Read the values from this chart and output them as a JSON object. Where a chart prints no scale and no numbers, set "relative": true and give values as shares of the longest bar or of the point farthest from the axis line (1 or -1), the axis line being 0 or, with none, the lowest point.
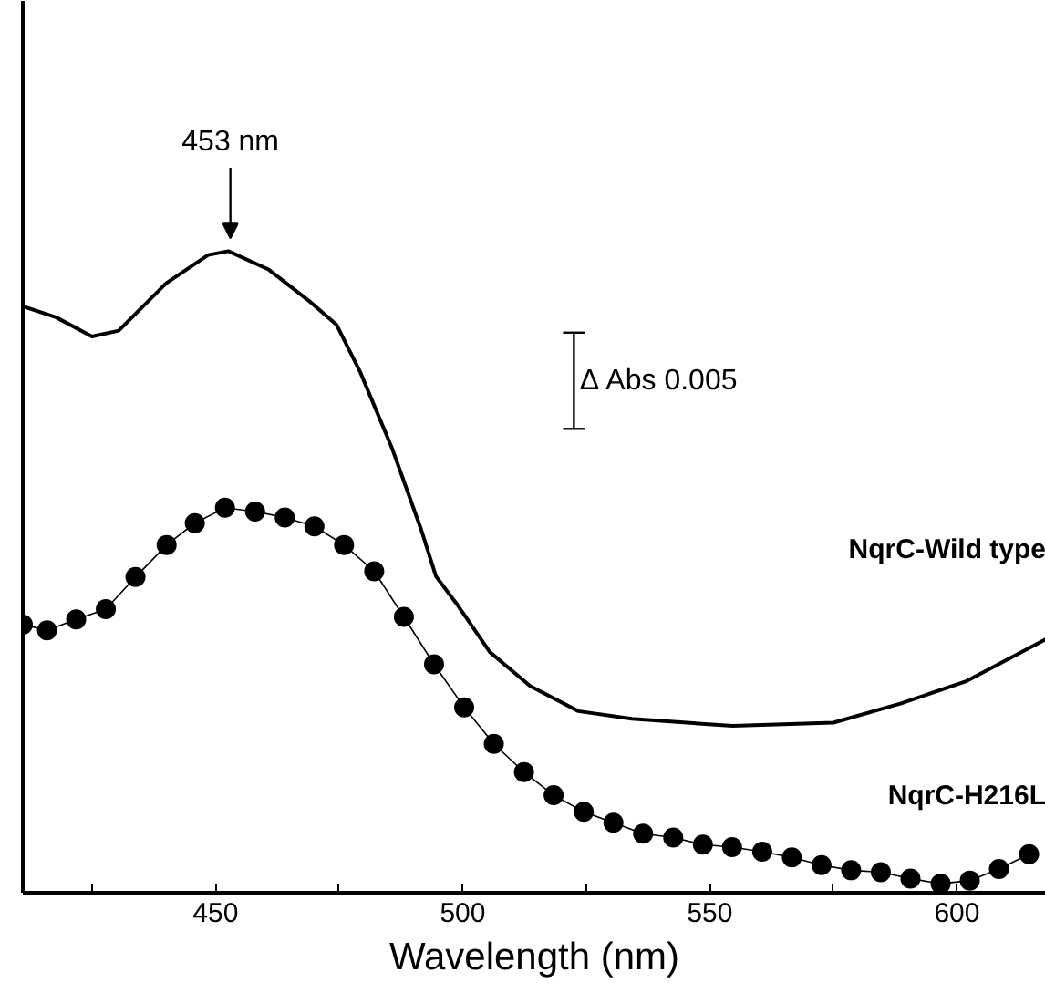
{
  "chart_data": {
    "type": "line",
    "relative": true,
    "xlabel": "Wavelength (nm)",
    "xlim": [
      411,
      618
    ],
    "xticks": [
      {
        "value": 425,
        "label": null
      },
      450,
      {
        "value": 475,
        "label": null
      },
      500,
      {
        "value": 525,
        "label": null
      },
      550,
      {
        "value": 575,
        "label": null
      },
      600
    ],
    "grid": false,
    "annotations": [
      {
        "text": "453 nm",
        "x": 453,
        "y": 1.0
      },
      "Δ Abs 0.005"
    ],
    "series": [
      {
        "name": "NqrC-Wild type",
        "color": "#000000",
        "marker": "none",
        "x": [
          411,
          417.7,
          425,
          430.4,
          440,
          448.5,
          452.6,
          460.8,
          469.3,
          474.5,
          479.3,
          485.7,
          491.6,
          494.6,
          499,
          505.5,
          513.7,
          523.4,
          534.2,
          554.6,
          575,
          588.7,
          602,
          618
        ],
        "values": [
          0.914,
          0.897,
          0.867,
          0.876,
          0.95,
          0.994,
          1.0,
          0.971,
          0.92,
          0.885,
          0.811,
          0.693,
          0.566,
          0.493,
          0.448,
          0.375,
          0.322,
          0.283,
          0.271,
          0.26,
          0.265,
          0.295,
          0.33,
          0.395
        ]
      },
      {
        "name": "NqrC-H216L",
        "color": "#000000",
        "marker": "circle",
        "x": [
          411,
          415.9,
          421.8,
          427.8,
          433.8,
          440.1,
          445.8,
          451.9,
          458,
          464,
          470,
          476,
          482.1,
          488.1,
          494.2,
          500.3,
          506.3,
          512.4,
          518.4,
          524.5,
          530.5,
          536.5,
          542.6,
          548.6,
          554.5,
          560.6,
          566.6,
          572.6,
          578.6,
          584.6,
          590.6,
          596.7,
          602.6,
          608.5,
          614.6
        ],
        "values": [
          0.418,
          0.409,
          0.426,
          0.442,
          0.492,
          0.542,
          0.576,
          0.6,
          0.594,
          0.585,
          0.571,
          0.542,
          0.501,
          0.43,
          0.356,
          0.289,
          0.232,
          0.188,
          0.152,
          0.126,
          0.109,
          0.092,
          0.086,
          0.075,
          0.071,
          0.064,
          0.055,
          0.043,
          0.035,
          0.032,
          0.022,
          0.014,
          0.019,
          0.037,
          0.06
        ]
      }
    ]
  }
}
